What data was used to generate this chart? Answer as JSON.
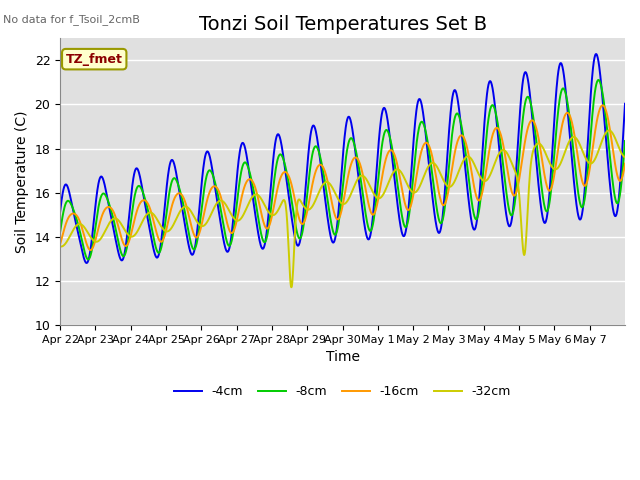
{
  "title": "Tonzi Soil Temperatures Set B",
  "xlabel": "Time",
  "ylabel": "Soil Temperature (C)",
  "note": "No data for f_Tsoil_2cmB",
  "annotation": "TZ_fmet",
  "ylim": [
    10,
    23
  ],
  "yticks": [
    10,
    12,
    14,
    16,
    18,
    20,
    22
  ],
  "xtick_labels": [
    "Apr 22",
    "Apr 23",
    "Apr 24",
    "Apr 25",
    "Apr 26",
    "Apr 27",
    "Apr 28",
    "Apr 29",
    "Apr 30",
    "May 1",
    "May 2",
    "May 3",
    "May 4",
    "May 5",
    "May 6",
    "May 7"
  ],
  "legend_labels": [
    "-4cm",
    "-8cm",
    "-16cm",
    "-32cm"
  ],
  "line_colors": [
    "#0000ee",
    "#00cc00",
    "#ff9900",
    "#cccc00"
  ],
  "bg_color": "#e0e0e0",
  "fig_bg": "#ffffff",
  "title_fontsize": 14,
  "label_fontsize": 10,
  "tick_fontsize": 8
}
